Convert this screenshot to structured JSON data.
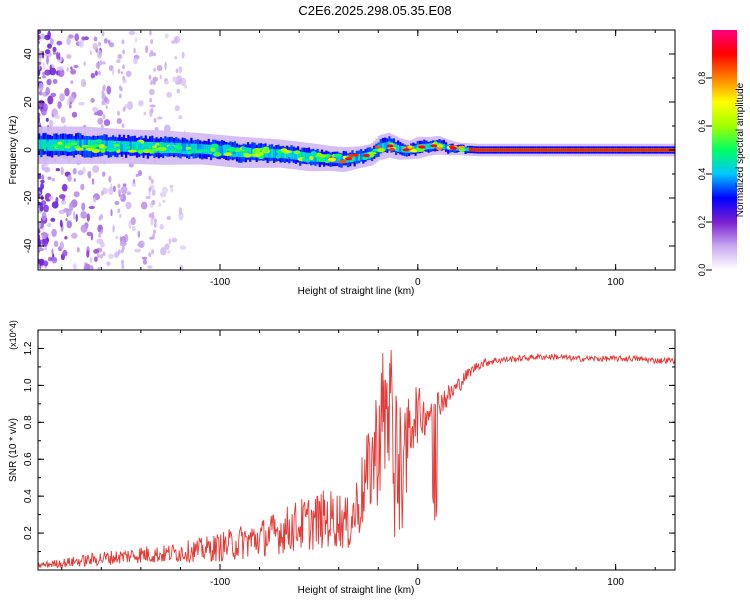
{
  "title": "C2E6.2025.298.05.35.E08",
  "colors": {
    "signal": "#e02020",
    "snr_line": "#e53935",
    "background": "#ffffff",
    "axis": "#000000"
  },
  "chart_data": [
    {
      "type": "heatmap",
      "name": "spectrogram",
      "xlabel": "Height of straight line (km)",
      "ylabel": "Frequency (Hz)",
      "xlim": [
        -192,
        130
      ],
      "ylim": [
        -50,
        50
      ],
      "xticks": [
        -100,
        0,
        100
      ],
      "yticks": [
        -40,
        -20,
        0,
        20,
        40
      ],
      "colorbar": {
        "label": "Normalized spectral amplitude",
        "range": [
          0,
          1
        ],
        "ticks": [
          "0.0",
          "0.2",
          "0.4",
          "0.6",
          "0.8"
        ],
        "colormap": [
          "#ffffff",
          "#c8a8f0",
          "#7a1fd0",
          "#0000ff",
          "#00c8ff",
          "#00ff64",
          "#a0ff00",
          "#ffff00",
          "#ff8000",
          "#ff0000",
          "#ff0080"
        ]
      },
      "ridge": {
        "x": [
          -190,
          -170,
          -150,
          -130,
          -110,
          -90,
          -70,
          -55,
          -45,
          -38,
          -30,
          -24,
          -20,
          -15,
          -10,
          -5,
          0,
          5,
          10,
          15,
          20,
          30,
          40,
          60,
          80,
          100,
          130
        ],
        "freq": [
          2,
          2,
          1.5,
          1,
          0.5,
          -1,
          -1.5,
          -3,
          -3.5,
          -4,
          -3,
          -2,
          1,
          2,
          0.5,
          0,
          1,
          1.5,
          2,
          1,
          0.5,
          0,
          0,
          0,
          0,
          0,
          0
        ],
        "halfwidth": [
          6,
          6,
          5.5,
          5.5,
          5,
          5,
          4.5,
          4.5,
          4,
          4,
          3.5,
          3.5,
          4,
          4,
          3.5,
          3,
          3.5,
          3,
          3,
          2.5,
          2,
          2,
          2,
          2,
          2,
          2,
          2
        ]
      }
    },
    {
      "type": "line",
      "name": "snr",
      "xlabel": "Height of straight line (km)",
      "ylabel": "SNR (10 * v/v)",
      "y_multiplier": "(x10^4)",
      "xlim": [
        -192,
        130
      ],
      "ylim": [
        0,
        1.3
      ],
      "xticks": [
        -100,
        0,
        100
      ],
      "yticks": [
        0.2,
        0.4,
        0.6,
        0.8,
        1.0,
        1.2
      ],
      "series": [
        {
          "name": "SNR",
          "x": [
            -192,
            -180,
            -170,
            -160,
            -150,
            -140,
            -130,
            -120,
            -110,
            -100,
            -90,
            -80,
            -70,
            -60,
            -50,
            -45,
            -40,
            -35,
            -30,
            -25,
            -20,
            -18,
            -16,
            -14,
            -12,
            -10,
            -8,
            -6,
            -4,
            -2,
            0,
            2,
            5,
            8,
            10,
            15,
            20,
            25,
            30,
            35,
            40,
            50,
            60,
            70,
            80,
            90,
            100,
            110,
            120,
            130
          ],
          "values": [
            0.02,
            0.03,
            0.04,
            0.05,
            0.06,
            0.07,
            0.07,
            0.08,
            0.09,
            0.1,
            0.12,
            0.14,
            0.17,
            0.2,
            0.22,
            0.23,
            0.23,
            0.2,
            0.3,
            0.45,
            0.6,
            0.7,
            0.72,
            0.68,
            0.6,
            0.5,
            0.5,
            0.55,
            0.7,
            0.8,
            0.8,
            0.8,
            0.82,
            0.85,
            0.88,
            0.92,
            0.98,
            1.05,
            1.1,
            1.12,
            1.13,
            1.14,
            1.15,
            1.15,
            1.14,
            1.14,
            1.14,
            1.14,
            1.13,
            1.13
          ],
          "noise_amplitude": [
            0.02,
            0.03,
            0.04,
            0.05,
            0.05,
            0.06,
            0.06,
            0.07,
            0.08,
            0.1,
            0.12,
            0.13,
            0.15,
            0.18,
            0.2,
            0.2,
            0.2,
            0.18,
            0.25,
            0.3,
            0.45,
            0.5,
            0.5,
            0.5,
            0.55,
            0.5,
            0.35,
            0.3,
            0.3,
            0.25,
            0.2,
            0.15,
            0.15,
            0.12,
            0.1,
            0.08,
            0.06,
            0.04,
            0.03,
            0.03,
            0.025,
            0.02,
            0.02,
            0.02,
            0.02,
            0.02,
            0.02,
            0.02,
            0.02,
            0.02
          ]
        }
      ]
    }
  ]
}
